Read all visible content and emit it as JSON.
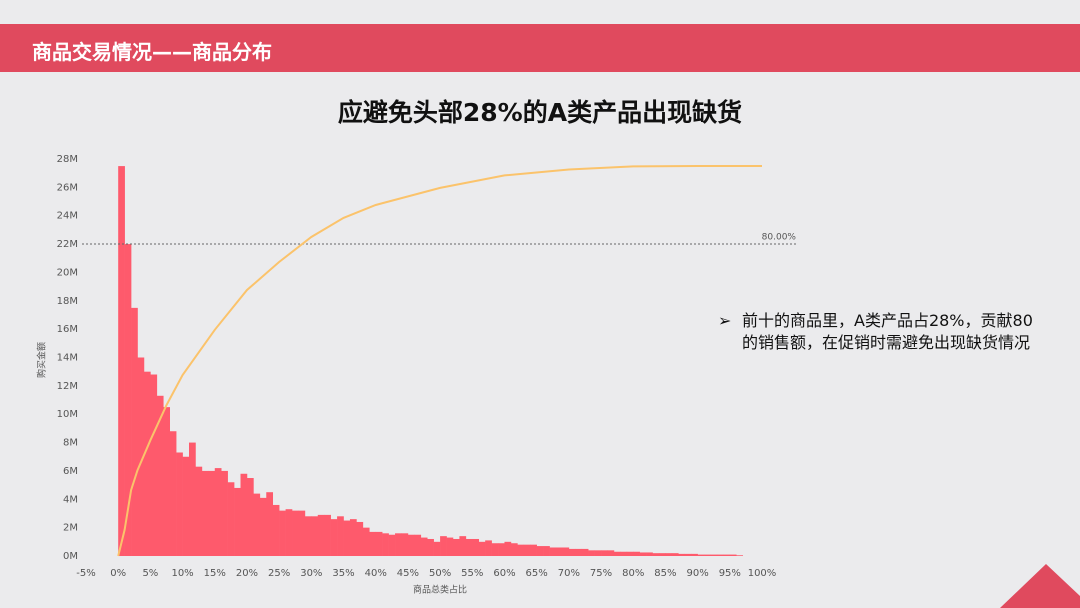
{
  "header": {
    "title": "商品交易情况——商品分布"
  },
  "note": {
    "bullet": "➢",
    "text": "前十的商品里，A类产品占28%，贡献80的销售额，在促销时需避免出现缺货情况"
  },
  "chart_data": {
    "type": "histogram",
    "title": "应避免头部28%的A类产品出现缺货",
    "xlabel": "商品总类占比",
    "ylabel": "购买金额",
    "color": "#fe5a6c",
    "bins": [
      0,
      1,
      2,
      3,
      4,
      5,
      6,
      7,
      8,
      9,
      10,
      11,
      12,
      13,
      14,
      15,
      16,
      17,
      18,
      19,
      20,
      21,
      22,
      23,
      24,
      25,
      26,
      27,
      28,
      29,
      30,
      31,
      32,
      33,
      34,
      35,
      36,
      37,
      38,
      39,
      40,
      41,
      42,
      43,
      44,
      45,
      46,
      47,
      48,
      49,
      50,
      51,
      52,
      53,
      54,
      55,
      56,
      57,
      58,
      59,
      60,
      61,
      62,
      63,
      64,
      65,
      66,
      67,
      68,
      69,
      70,
      71,
      72,
      73,
      74,
      75,
      76,
      77,
      78,
      79,
      80,
      81,
      82,
      83,
      84,
      85,
      86,
      87,
      88,
      89,
      90,
      91,
      92,
      93,
      94,
      95,
      96,
      97
    ],
    "values": [
      27.5,
      22,
      17.5,
      14,
      13,
      12.8,
      11.3,
      10.5,
      8.8,
      7.3,
      7,
      8,
      6.3,
      6,
      6,
      6.2,
      6,
      5.2,
      4.8,
      5.8,
      5.5,
      4.4,
      4.1,
      4.5,
      3.6,
      3.2,
      3.3,
      3.2,
      3.2,
      2.8,
      2.8,
      2.9,
      2.9,
      2.6,
      2.8,
      2.5,
      2.6,
      2.4,
      2,
      1.7,
      1.7,
      1.6,
      1.5,
      1.6,
      1.6,
      1.5,
      1.5,
      1.3,
      1.2,
      1,
      1.4,
      1.3,
      1.2,
      1.4,
      1.2,
      1.2,
      1,
      1.1,
      0.9,
      0.9,
      1,
      0.9,
      0.8,
      0.8,
      0.8,
      0.7,
      0.7,
      0.6,
      0.6,
      0.6,
      0.5,
      0.5,
      0.5,
      0.4,
      0.4,
      0.4,
      0.4,
      0.3,
      0.3,
      0.3,
      0.3,
      0.25,
      0.25,
      0.2,
      0.2,
      0.2,
      0.2,
      0.15,
      0.15,
      0.15,
      0.1,
      0.1,
      0.1,
      0.1,
      0.1,
      0.1,
      0.05
    ],
    "line": {
      "axis": "y2",
      "color": "#fbc36b",
      "x": [
        0,
        1,
        2,
        3,
        5,
        7.5,
        10,
        15,
        20,
        25,
        30,
        35,
        40,
        50,
        60,
        70,
        80,
        90,
        100
      ],
      "values": [
        0,
        6.7,
        16.9,
        22,
        29.7,
        38.7,
        46.4,
        58,
        68.2,
        75.4,
        81.8,
        86.7,
        90,
        94.4,
        97.6,
        99.1,
        99.9,
        100,
        100
      ]
    },
    "reference": {
      "value": 80,
      "label": "80.00%",
      "axis": "y2"
    },
    "xlim": [
      -5,
      100
    ],
    "ylim": [
      0,
      28
    ],
    "y2lim": [
      0,
      101.8
    ],
    "xticks": [
      {
        "value": -5,
        "label": "-5%"
      },
      {
        "value": 0,
        "label": "0%"
      },
      {
        "value": 5,
        "label": "5%"
      },
      {
        "value": 10,
        "label": "10%"
      },
      {
        "value": 15,
        "label": "15%"
      },
      {
        "value": 20,
        "label": "20%"
      },
      {
        "value": 25,
        "label": "25%"
      },
      {
        "value": 30,
        "label": "30%"
      },
      {
        "value": 35,
        "label": "35%"
      },
      {
        "value": 40,
        "label": "40%"
      },
      {
        "value": 45,
        "label": "45%"
      },
      {
        "value": 50,
        "label": "50%"
      },
      {
        "value": 55,
        "label": "55%"
      },
      {
        "value": 60,
        "label": "60%"
      },
      {
        "value": 65,
        "label": "65%"
      },
      {
        "value": 70,
        "label": "70%"
      },
      {
        "value": 75,
        "label": "75%"
      },
      {
        "value": 80,
        "label": "80%"
      },
      {
        "value": 85,
        "label": "85%"
      },
      {
        "value": 90,
        "label": "90%"
      },
      {
        "value": 95,
        "label": "95%"
      },
      {
        "value": 100,
        "label": "100%"
      }
    ],
    "yticks": [
      {
        "value": 0,
        "label": "0M"
      },
      {
        "value": 2,
        "label": "2M"
      },
      {
        "value": 4,
        "label": "4M"
      },
      {
        "value": 6,
        "label": "6M"
      },
      {
        "value": 8,
        "label": "8M"
      },
      {
        "value": 10,
        "label": "10M"
      },
      {
        "value": 12,
        "label": "12M"
      },
      {
        "value": 14,
        "label": "14M"
      },
      {
        "value": 16,
        "label": "16M"
      },
      {
        "value": 18,
        "label": "18M"
      },
      {
        "value": 20,
        "label": "20M"
      },
      {
        "value": 22,
        "label": "22M"
      },
      {
        "value": 24,
        "label": "24M"
      },
      {
        "value": 26,
        "label": "26M"
      },
      {
        "value": 28,
        "label": "28M"
      }
    ]
  }
}
